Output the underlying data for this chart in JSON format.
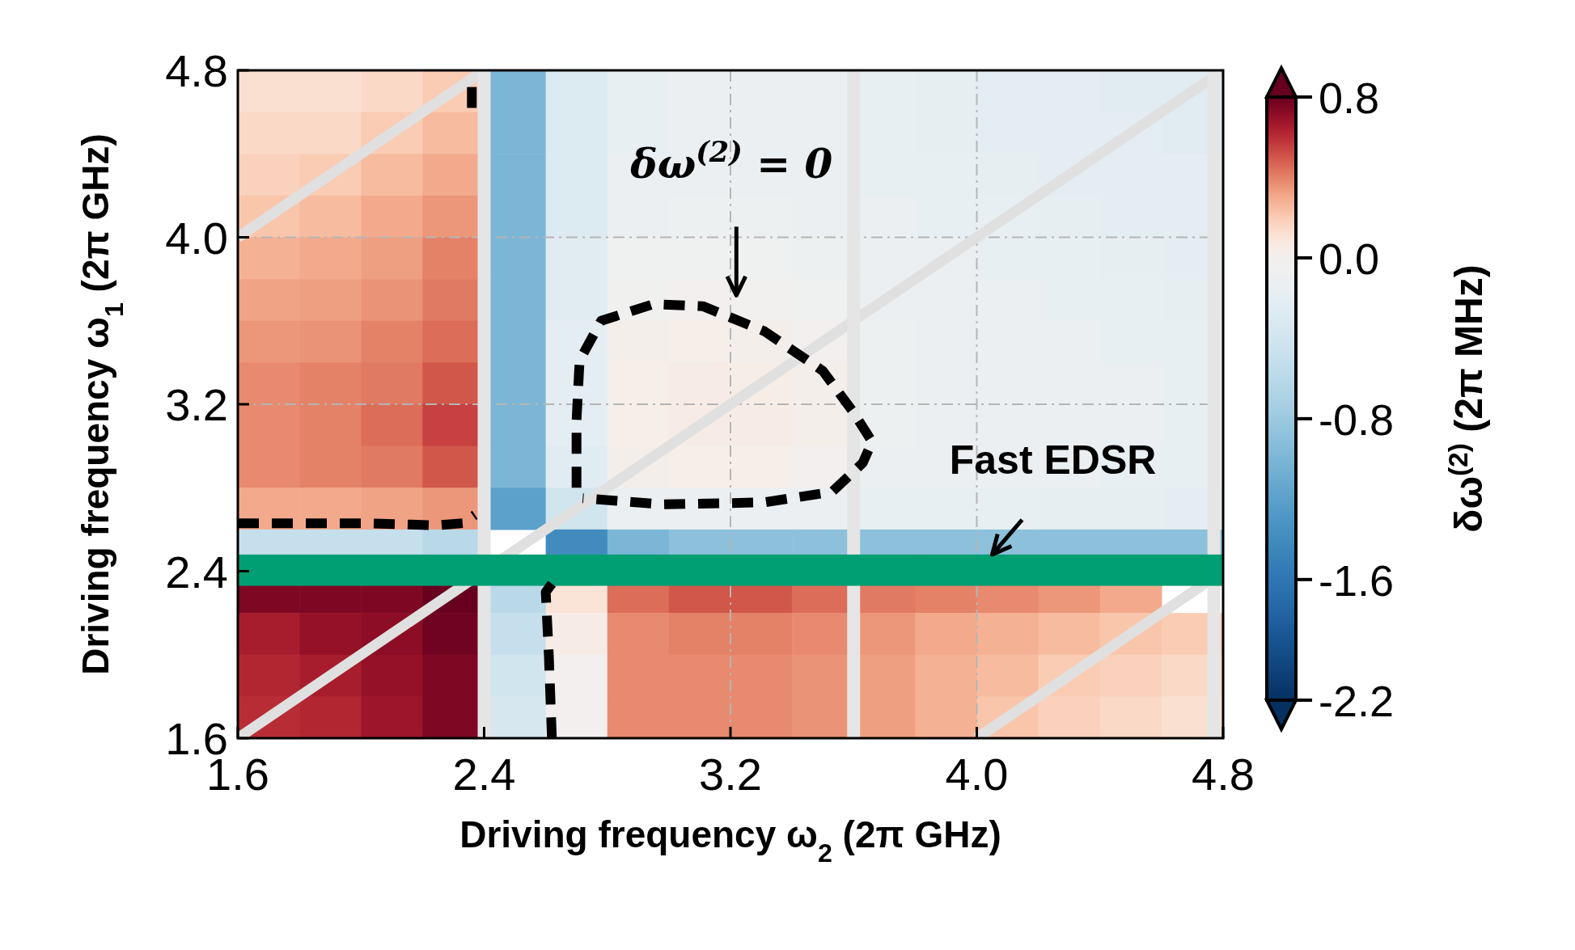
{
  "chart_data": {
    "type": "heatmap",
    "xlabel": "Driving frequency ω$_{2}$ (2π GHz)",
    "ylabel": "Driving frequency ω$_{1}$ (2π GHz)",
    "clabel": "δω$^{(2)}$ (2π MHz)",
    "x": [
      1.7,
      1.9,
      2.1,
      2.3,
      2.5,
      2.7,
      2.9,
      3.1,
      3.3,
      3.5,
      3.7,
      3.9,
      4.1,
      4.3,
      4.5,
      4.7
    ],
    "y": [
      4.7,
      4.5,
      4.3,
      4.1,
      3.9,
      3.7,
      3.5,
      3.3,
      3.1,
      2.9,
      2.7,
      2.5,
      2.3,
      2.1,
      1.9,
      1.7
    ],
    "xlim": [
      1.6,
      4.8
    ],
    "ylim": [
      1.6,
      4.8
    ],
    "xticks": [
      1.6,
      2.4,
      3.2,
      {
        "value": 4,
        "label": "4.0"
      },
      4.8
    ],
    "yticks": [
      1.6,
      2.4,
      3.2,
      {
        "value": 4,
        "label": "4.0"
      },
      4.8
    ],
    "clim": [
      -2.2,
      0.8
    ],
    "cticks": [
      0.8,
      {
        "value": 0,
        "label": "0.0"
      },
      -0.8,
      -1.6,
      -2.2
    ],
    "grid": true,
    "cells": [
      [
        0.12,
        0.12,
        0.15,
        0.2,
        -1.0,
        -0.3,
        -0.15,
        -0.12,
        -0.12,
        -0.12,
        -0.15,
        -0.18,
        -0.2,
        -0.22,
        -0.25,
        -0.25
      ],
      [
        0.15,
        0.15,
        0.2,
        0.25,
        -1.0,
        -0.3,
        -0.15,
        -0.12,
        -0.12,
        -0.12,
        -0.15,
        -0.18,
        -0.2,
        -0.22,
        -0.22,
        -0.25
      ],
      [
        0.18,
        0.2,
        0.25,
        0.3,
        -1.0,
        -0.3,
        -0.12,
        -0.1,
        -0.1,
        -0.12,
        -0.15,
        -0.15,
        -0.18,
        -0.2,
        -0.2,
        -0.22
      ],
      [
        0.22,
        0.25,
        0.3,
        0.35,
        -1.0,
        -0.3,
        -0.1,
        -0.08,
        -0.08,
        -0.1,
        -0.12,
        -0.15,
        -0.15,
        -0.18,
        -0.2,
        -0.2
      ],
      [
        0.28,
        0.3,
        0.33,
        0.4,
        -1.0,
        -0.25,
        -0.05,
        -0.05,
        -0.05,
        -0.08,
        -0.1,
        -0.12,
        -0.15,
        -0.15,
        -0.18,
        -0.2
      ],
      [
        0.32,
        0.33,
        0.36,
        0.42,
        -1.0,
        -0.25,
        -0.03,
        0,
        -0.02,
        -0.05,
        -0.1,
        -0.12,
        -0.12,
        -0.15,
        -0.15,
        -0.18
      ],
      [
        0.35,
        0.36,
        0.4,
        0.45,
        -1.0,
        -0.2,
        0.02,
        0.03,
        0.02,
        0,
        -0.08,
        -0.1,
        -0.12,
        -0.12,
        -0.15,
        -0.15
      ],
      [
        0.38,
        0.4,
        0.42,
        0.5,
        -1.0,
        -0.2,
        0.03,
        0.05,
        0.04,
        0.02,
        -0.08,
        -0.1,
        -0.1,
        -0.12,
        -0.12,
        -0.15
      ],
      [
        0.38,
        0.4,
        0.45,
        0.55,
        -1.0,
        -0.2,
        0.03,
        0.05,
        0.05,
        0.02,
        -0.08,
        -0.1,
        -0.1,
        -0.12,
        -0.12,
        -0.15
      ],
      [
        0.38,
        0.4,
        0.42,
        0.5,
        -1.0,
        -0.25,
        0.02,
        0.03,
        0.03,
        0,
        -0.1,
        -0.1,
        -0.12,
        -0.12,
        -0.15,
        -0.15
      ],
      [
        0.3,
        0.3,
        0.32,
        0.35,
        -1.2,
        -0.4,
        -0.1,
        -0.1,
        -0.1,
        -0.12,
        -0.15,
        -0.15,
        -0.15,
        -0.18,
        -0.18,
        -0.2
      ],
      [
        -0.5,
        -0.5,
        -0.5,
        -0.6,
        null,
        -1.4,
        -1.0,
        -0.9,
        -0.9,
        -0.9,
        -0.9,
        -0.9,
        -0.9,
        -0.9,
        -0.9,
        -0.9
      ],
      [
        0.75,
        0.75,
        0.75,
        0.8,
        -0.6,
        0.1,
        0.45,
        0.5,
        0.5,
        0.45,
        0.42,
        0.4,
        0.38,
        0.35,
        0.3,
        null
      ],
      [
        0.65,
        0.7,
        0.72,
        0.78,
        -0.5,
        0.05,
        0.38,
        0.4,
        0.4,
        0.38,
        0.35,
        0.3,
        0.28,
        0.25,
        0.22,
        0.2
      ],
      [
        0.62,
        0.65,
        0.7,
        0.75,
        -0.4,
        0,
        0.38,
        0.38,
        0.38,
        0.36,
        0.33,
        0.28,
        0.25,
        0.2,
        0.18,
        0.15
      ],
      [
        0.6,
        0.62,
        0.68,
        0.75,
        -0.35,
        0,
        0.38,
        0.38,
        0.38,
        0.36,
        0.33,
        0.28,
        0.22,
        0.18,
        0.15,
        0.12
      ]
    ],
    "series": [
      {
        "type": "line",
        "color": "#e0e0e0",
        "line_style": "solid",
        "x": [
          1.6,
          4.8
        ],
        "values": [
          1.6,
          4.8
        ]
      },
      {
        "type": "line",
        "color": "#e0e0e0",
        "line_style": "solid",
        "x": [
          1.6,
          2.4
        ],
        "values": [
          4.0,
          4.8
        ]
      },
      {
        "type": "line",
        "color": "#e0e0e0",
        "line_style": "solid",
        "x": [
          4.0,
          4.8
        ],
        "values": [
          1.6,
          2.4
        ]
      },
      {
        "type": "line",
        "color": "#000000",
        "line_style": "dashed",
        "x": [
          1.6,
          2.0,
          2.25,
          2.33,
          2.37
        ],
        "values": [
          2.63,
          2.63,
          2.62,
          2.63,
          2.67
        ]
      },
      {
        "type": "line",
        "color": "#000000",
        "line_style": "dashed",
        "x": [
          2.36,
          2.36
        ],
        "values": [
          4.72,
          4.62
        ]
      },
      {
        "type": "line",
        "color": "#000000",
        "line_style": "dashed",
        "x": [
          2.62,
          2.6,
          2.61,
          2.62
        ],
        "values": [
          2.34,
          2.3,
          2.0,
          1.6
        ]
      },
      {
        "type": "line",
        "color": "#000000",
        "line_style": "dashed",
        "x": [
          2.7,
          2.7,
          2.71,
          2.78,
          2.95,
          3.11,
          3.31,
          3.5,
          3.6,
          3.66,
          3.63,
          3.53,
          3.31,
          2.98,
          2.72
        ],
        "values": [
          2.8,
          3.12,
          3.41,
          3.6,
          3.68,
          3.67,
          3.55,
          3.36,
          3.16,
          3.02,
          2.92,
          2.78,
          2.73,
          2.72,
          2.75
        ]
      }
    ],
    "ref_lines": [
      {
        "axis": "x",
        "value": 2.4,
        "color": "#e5e5e5"
      },
      {
        "axis": "x",
        "value": 3.6,
        "color": "#e5e5e5"
      },
      {
        "axis": "x",
        "value": 4.77,
        "color": "#e5e5e5"
      }
    ],
    "bands": [
      {
        "axis": "y",
        "from": 2.33,
        "to": 2.48,
        "color": "#009e73"
      }
    ],
    "annotations": [
      "δω$^{(2)}$ = 0",
      {
        "text": "Fast EDSR",
        "x": 4.05,
        "y": 2.48
      }
    ]
  }
}
